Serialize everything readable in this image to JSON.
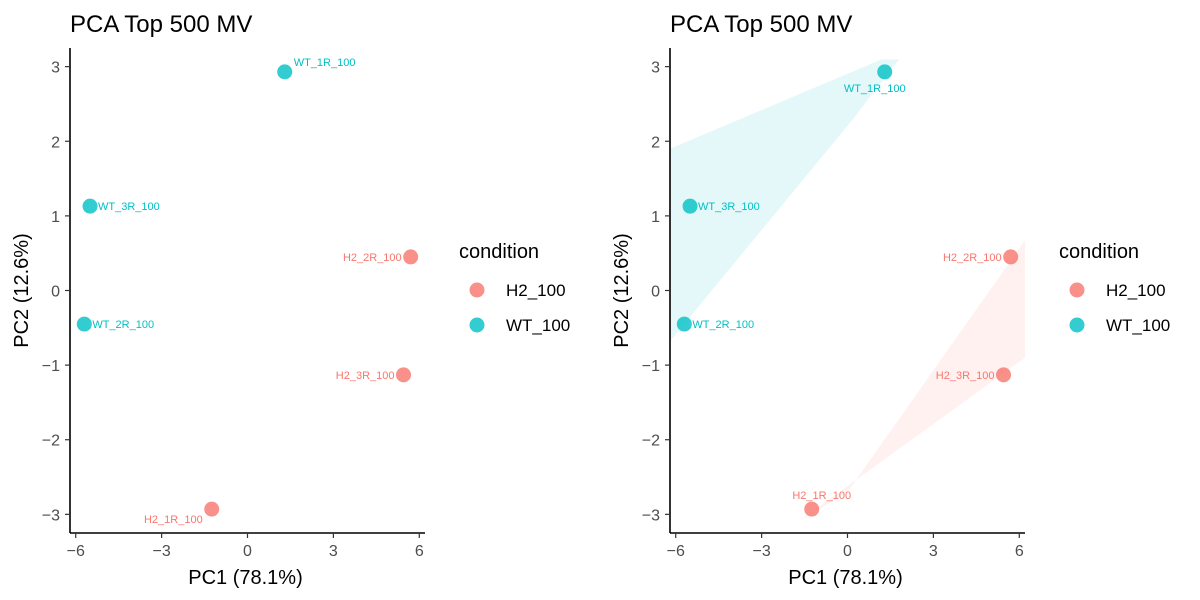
{
  "colors": {
    "H2_100": "#F8766D",
    "WT_100": "#00BFC4"
  },
  "legend": {
    "title": "condition",
    "items": [
      {
        "label": "H2_100",
        "group": "H2_100"
      },
      {
        "label": "WT_100",
        "group": "WT_100"
      }
    ]
  },
  "chart_data": [
    {
      "type": "scatter",
      "title": "PCA Top 500 MV",
      "xlabel": "PC1 (78.1%)",
      "ylabel": "PC2 (12.6%)",
      "xlim": [
        -6.2,
        6.2
      ],
      "ylim": [
        -3.25,
        3.25
      ],
      "xticks": [
        -6,
        -3,
        0,
        3,
        6
      ],
      "xtick_labels": [
        "−6",
        "−3",
        "0",
        "3",
        "6"
      ],
      "yticks": [
        -3,
        -2,
        -1,
        0,
        1,
        2,
        3
      ],
      "ytick_labels": [
        "−3",
        "−2",
        "−1",
        "0",
        "1",
        "2",
        "3"
      ],
      "ellipses": false,
      "legend_position": "right",
      "points": [
        {
          "label": "WT_1R_100",
          "group": "WT_100",
          "x": 1.3,
          "y": 2.93
        },
        {
          "label": "WT_3R_100",
          "group": "WT_100",
          "x": -5.5,
          "y": 1.13
        },
        {
          "label": "WT_2R_100",
          "group": "WT_100",
          "x": -5.7,
          "y": -0.45
        },
        {
          "label": "H2_2R_100",
          "group": "H2_100",
          "x": 5.7,
          "y": 0.45
        },
        {
          "label": "H2_3R_100",
          "group": "H2_100",
          "x": 5.45,
          "y": -1.13
        },
        {
          "label": "H2_1R_100",
          "group": "H2_100",
          "x": -1.25,
          "y": -2.93
        }
      ]
    },
    {
      "type": "scatter",
      "title": "PCA Top 500 MV",
      "xlabel": "PC1 (78.1%)",
      "ylabel": "PC2 (12.6%)",
      "xlim": [
        -6.2,
        6.2
      ],
      "ylim": [
        -3.25,
        3.25
      ],
      "xticks": [
        -6,
        -3,
        0,
        3,
        6
      ],
      "xtick_labels": [
        "−6",
        "−3",
        "0",
        "3",
        "6"
      ],
      "yticks": [
        -3,
        -2,
        -1,
        0,
        1,
        2,
        3
      ],
      "ytick_labels": [
        "−3",
        "−2",
        "−1",
        "0",
        "1",
        "2",
        "3"
      ],
      "ellipses": true,
      "legend_position": "right",
      "points": [
        {
          "label": "WT_1R_100",
          "group": "WT_100",
          "x": 1.3,
          "y": 2.93
        },
        {
          "label": "WT_3R_100",
          "group": "WT_100",
          "x": -5.5,
          "y": 1.13
        },
        {
          "label": "WT_2R_100",
          "group": "WT_100",
          "x": -5.7,
          "y": -0.45
        },
        {
          "label": "H2_2R_100",
          "group": "H2_100",
          "x": 5.7,
          "y": 0.45
        },
        {
          "label": "H2_3R_100",
          "group": "H2_100",
          "x": 5.45,
          "y": -1.13
        },
        {
          "label": "H2_1R_100",
          "group": "H2_100",
          "x": -1.25,
          "y": -2.93
        }
      ]
    }
  ]
}
